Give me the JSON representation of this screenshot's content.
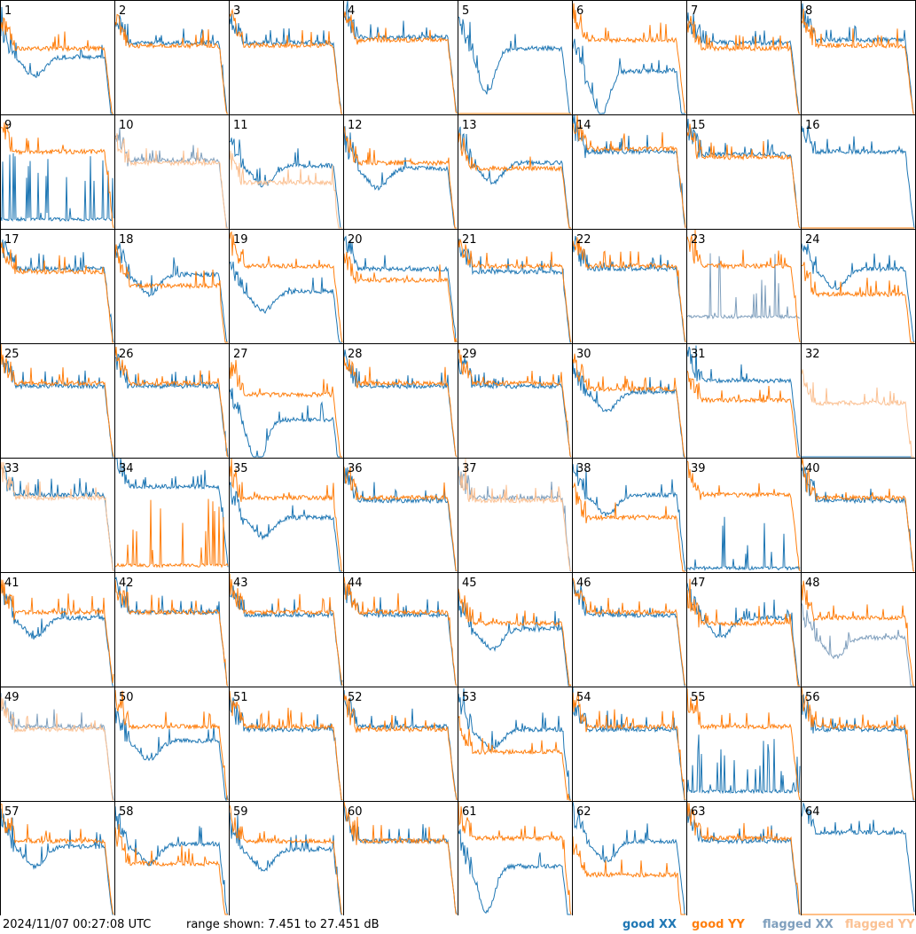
{
  "colors": {
    "good_xx": "#1f77b4",
    "good_yy": "#ff7f0e",
    "flagged_xx": "#7f9fbd",
    "flagged_yy": "#fbc193",
    "grid": "#000000",
    "background": "#ffffff"
  },
  "footer": {
    "timestamp": "2024/11/07 00:27:08 UTC",
    "range_text": "range shown: 7.451 to 27.451 dB",
    "legend": [
      {
        "key": "good_xx",
        "label": "good XX"
      },
      {
        "key": "good_yy",
        "label": "good YY"
      },
      {
        "key": "flagged_xx",
        "label": "flagged XX"
      },
      {
        "key": "flagged_yy",
        "label": "flagged YY"
      }
    ]
  },
  "chart_data": {
    "type": "line",
    "title": "",
    "layout": "8x8 grid of small multiples, one per antenna (1-64)",
    "ylim": [
      7.451,
      27.451
    ],
    "yunits": "dB",
    "x": "frequency channel (unlabeled)",
    "series_names": [
      "good XX",
      "good YY",
      "flagged XX",
      "flagged YY"
    ],
    "panels": [
      {
        "id": 1,
        "xx": "good",
        "yy": "good",
        "shape": "dip",
        "level_xx": 17.5,
        "level_yy": 19.0
      },
      {
        "id": 2,
        "xx": "good",
        "yy": "good",
        "shape": "flat",
        "level_xx": 20.0,
        "level_yy": 19.5
      },
      {
        "id": 3,
        "xx": "good",
        "yy": "good",
        "shape": "flat",
        "level_xx": 20.0,
        "level_yy": 19.5
      },
      {
        "id": 4,
        "xx": "good",
        "yy": "good",
        "shape": "flat",
        "level_xx": 21.0,
        "level_yy": 20.5
      },
      {
        "id": 5,
        "xx": "good",
        "yy": "absent",
        "shape": "deepdip",
        "level_xx": 19.0,
        "level_yy": 7.5
      },
      {
        "id": 6,
        "xx": "good",
        "yy": "good",
        "shape": "deepdip",
        "level_xx": 15.0,
        "level_yy": 20.5
      },
      {
        "id": 7,
        "xx": "good",
        "yy": "good",
        "shape": "flat",
        "level_xx": 20.0,
        "level_yy": 19.0
      },
      {
        "id": 8,
        "xx": "good",
        "yy": "good",
        "shape": "flat",
        "level_xx": 20.5,
        "level_yy": 19.5
      },
      {
        "id": 9,
        "xx": "good",
        "yy": "good",
        "shape": "spiky_xx",
        "level_xx": 9.0,
        "level_yy": 21.0
      },
      {
        "id": 10,
        "xx": "flagged",
        "yy": "flagged",
        "shape": "flat",
        "level_xx": 19.5,
        "level_yy": 19.0
      },
      {
        "id": 11,
        "xx": "good",
        "yy": "flagged",
        "shape": "dip",
        "level_xx": 18.5,
        "level_yy": 15.5
      },
      {
        "id": 12,
        "xx": "good",
        "yy": "good",
        "shape": "dip",
        "level_xx": 18.0,
        "level_yy": 19.0
      },
      {
        "id": 13,
        "xx": "good",
        "yy": "good",
        "shape": "dip",
        "level_xx": 19.0,
        "level_yy": 18.0
      },
      {
        "id": 14,
        "xx": "good",
        "yy": "good",
        "shape": "flat",
        "level_xx": 21.0,
        "level_yy": 21.5
      },
      {
        "id": 15,
        "xx": "good",
        "yy": "good",
        "shape": "flat",
        "level_xx": 20.5,
        "level_yy": 20.0
      },
      {
        "id": 16,
        "xx": "good",
        "yy": "absent",
        "shape": "flat",
        "level_xx": 21.0,
        "level_yy": 7.5
      },
      {
        "id": 17,
        "xx": "good",
        "yy": "good",
        "shape": "flat",
        "level_xx": 20.5,
        "level_yy": 20.0
      },
      {
        "id": 18,
        "xx": "good",
        "yy": "good",
        "shape": "dip",
        "level_xx": 19.5,
        "level_yy": 17.5
      },
      {
        "id": 19,
        "xx": "good",
        "yy": "good",
        "shape": "dip",
        "level_xx": 16.5,
        "level_yy": 21.0
      },
      {
        "id": 20,
        "xx": "good",
        "yy": "good",
        "shape": "flat",
        "level_xx": 20.5,
        "level_yy": 18.5
      },
      {
        "id": 21,
        "xx": "good",
        "yy": "good",
        "shape": "flat",
        "level_xx": 20.0,
        "level_yy": 21.0
      },
      {
        "id": 22,
        "xx": "good",
        "yy": "good",
        "shape": "flat",
        "level_xx": 20.5,
        "level_yy": 21.0
      },
      {
        "id": 23,
        "xx": "flagged",
        "yy": "good",
        "shape": "spiky_xx",
        "level_xx": 12.0,
        "level_yy": 21.0
      },
      {
        "id": 24,
        "xx": "good",
        "yy": "good",
        "shape": "dip",
        "level_xx": 20.5,
        "level_yy": 16.0
      },
      {
        "id": 25,
        "xx": "good",
        "yy": "good",
        "shape": "flat",
        "level_xx": 20.0,
        "level_yy": 20.5
      },
      {
        "id": 26,
        "xx": "good",
        "yy": "good",
        "shape": "flat",
        "level_xx": 20.0,
        "level_yy": 20.5
      },
      {
        "id": 27,
        "xx": "good",
        "yy": "good",
        "shape": "deepdip",
        "level_xx": 14.0,
        "level_yy": 18.5
      },
      {
        "id": 28,
        "xx": "good",
        "yy": "good",
        "shape": "flat",
        "level_xx": 20.0,
        "level_yy": 20.5
      },
      {
        "id": 29,
        "xx": "good",
        "yy": "good",
        "shape": "flat",
        "level_xx": 20.0,
        "level_yy": 20.5
      },
      {
        "id": 30,
        "xx": "good",
        "yy": "good",
        "shape": "dip",
        "level_xx": 19.0,
        "level_yy": 19.5
      },
      {
        "id": 31,
        "xx": "good",
        "yy": "good",
        "shape": "flat",
        "level_xx": 21.0,
        "level_yy": 17.5
      },
      {
        "id": 32,
        "xx": "absent",
        "yy": "flagged",
        "shape": "flat",
        "level_xx": 7.5,
        "level_yy": 17.0
      },
      {
        "id": 33,
        "xx": "good",
        "yy": "flagged",
        "shape": "flat",
        "level_xx": 21.0,
        "level_yy": 20.5
      },
      {
        "id": 34,
        "xx": "good",
        "yy": "good",
        "shape": "spiky_yy",
        "level_xx": 22.5,
        "level_yy": 8.5
      },
      {
        "id": 35,
        "xx": "good",
        "yy": "good",
        "shape": "dip",
        "level_xx": 17.0,
        "level_yy": 20.5
      },
      {
        "id": 36,
        "xx": "good",
        "yy": "good",
        "shape": "flat",
        "level_xx": 20.0,
        "level_yy": 20.5
      },
      {
        "id": 37,
        "xx": "flagged",
        "yy": "flagged",
        "shape": "flat",
        "level_xx": 20.5,
        "level_yy": 20.0
      },
      {
        "id": 38,
        "xx": "good",
        "yy": "good",
        "shape": "dip",
        "level_xx": 21.0,
        "level_yy": 17.0
      },
      {
        "id": 39,
        "xx": "good",
        "yy": "good",
        "shape": "spiky_xx",
        "level_xx": 8.0,
        "level_yy": 21.0
      },
      {
        "id": 40,
        "xx": "good",
        "yy": "good",
        "shape": "flat",
        "level_xx": 20.0,
        "level_yy": 20.5
      },
      {
        "id": 41,
        "xx": "good",
        "yy": "good",
        "shape": "dip",
        "level_xx": 19.5,
        "level_yy": 20.5
      },
      {
        "id": 42,
        "xx": "good",
        "yy": "good",
        "shape": "flat",
        "level_xx": 20.5,
        "level_yy": 20.5
      },
      {
        "id": 43,
        "xx": "good",
        "yy": "good",
        "shape": "flat",
        "level_xx": 20.0,
        "level_yy": 20.5
      },
      {
        "id": 44,
        "xx": "good",
        "yy": "good",
        "shape": "flat",
        "level_xx": 20.0,
        "level_yy": 20.5
      },
      {
        "id": 45,
        "xx": "good",
        "yy": "good",
        "shape": "dip",
        "level_xx": 17.5,
        "level_yy": 18.5
      },
      {
        "id": 46,
        "xx": "good",
        "yy": "good",
        "shape": "flat",
        "level_xx": 20.0,
        "level_yy": 20.5
      },
      {
        "id": 47,
        "xx": "good",
        "yy": "good",
        "shape": "dip",
        "level_xx": 19.5,
        "level_yy": 18.5
      },
      {
        "id": 48,
        "xx": "flagged",
        "yy": "good",
        "shape": "dip",
        "level_xx": 16.0,
        "level_yy": 19.5
      },
      {
        "id": 49,
        "xx": "flagged",
        "yy": "flagged",
        "shape": "flat",
        "level_xx": 20.5,
        "level_yy": 20.0
      },
      {
        "id": 50,
        "xx": "good",
        "yy": "good",
        "shape": "dip",
        "level_xx": 18.0,
        "level_yy": 20.5
      },
      {
        "id": 51,
        "xx": "good",
        "yy": "good",
        "shape": "flat",
        "level_xx": 20.0,
        "level_yy": 20.5
      },
      {
        "id": 52,
        "xx": "good",
        "yy": "good",
        "shape": "flat",
        "level_xx": 20.5,
        "level_yy": 20.0
      },
      {
        "id": 53,
        "xx": "good",
        "yy": "good",
        "shape": "dip",
        "level_xx": 20.0,
        "level_yy": 16.0
      },
      {
        "id": 54,
        "xx": "good",
        "yy": "good",
        "shape": "flat",
        "level_xx": 20.0,
        "level_yy": 20.5
      },
      {
        "id": 55,
        "xx": "good",
        "yy": "good",
        "shape": "spiky_xx",
        "level_xx": 9.0,
        "level_yy": 20.5
      },
      {
        "id": 56,
        "xx": "good",
        "yy": "good",
        "shape": "flat",
        "level_xx": 20.0,
        "level_yy": 20.5
      },
      {
        "id": 57,
        "xx": "good",
        "yy": "good",
        "shape": "dip",
        "level_xx": 19.5,
        "level_yy": 20.5
      },
      {
        "id": 58,
        "xx": "good",
        "yy": "good",
        "shape": "dip",
        "level_xx": 20.0,
        "level_yy": 16.5
      },
      {
        "id": 59,
        "xx": "good",
        "yy": "good",
        "shape": "dip",
        "level_xx": 19.0,
        "level_yy": 20.5
      },
      {
        "id": 60,
        "xx": "good",
        "yy": "good",
        "shape": "flat",
        "level_xx": 20.5,
        "level_yy": 20.5
      },
      {
        "id": 61,
        "xx": "good",
        "yy": "good",
        "shape": "deepdip",
        "level_xx": 16.0,
        "level_yy": 21.0
      },
      {
        "id": 62,
        "xx": "good",
        "yy": "good",
        "shape": "dip",
        "level_xx": 20.5,
        "level_yy": 14.5
      },
      {
        "id": 63,
        "xx": "good",
        "yy": "good",
        "shape": "flat",
        "level_xx": 20.5,
        "level_yy": 21.0
      },
      {
        "id": 64,
        "xx": "good",
        "yy": "absent",
        "shape": "flat",
        "level_xx": 22.0,
        "level_yy": 7.5
      }
    ]
  }
}
